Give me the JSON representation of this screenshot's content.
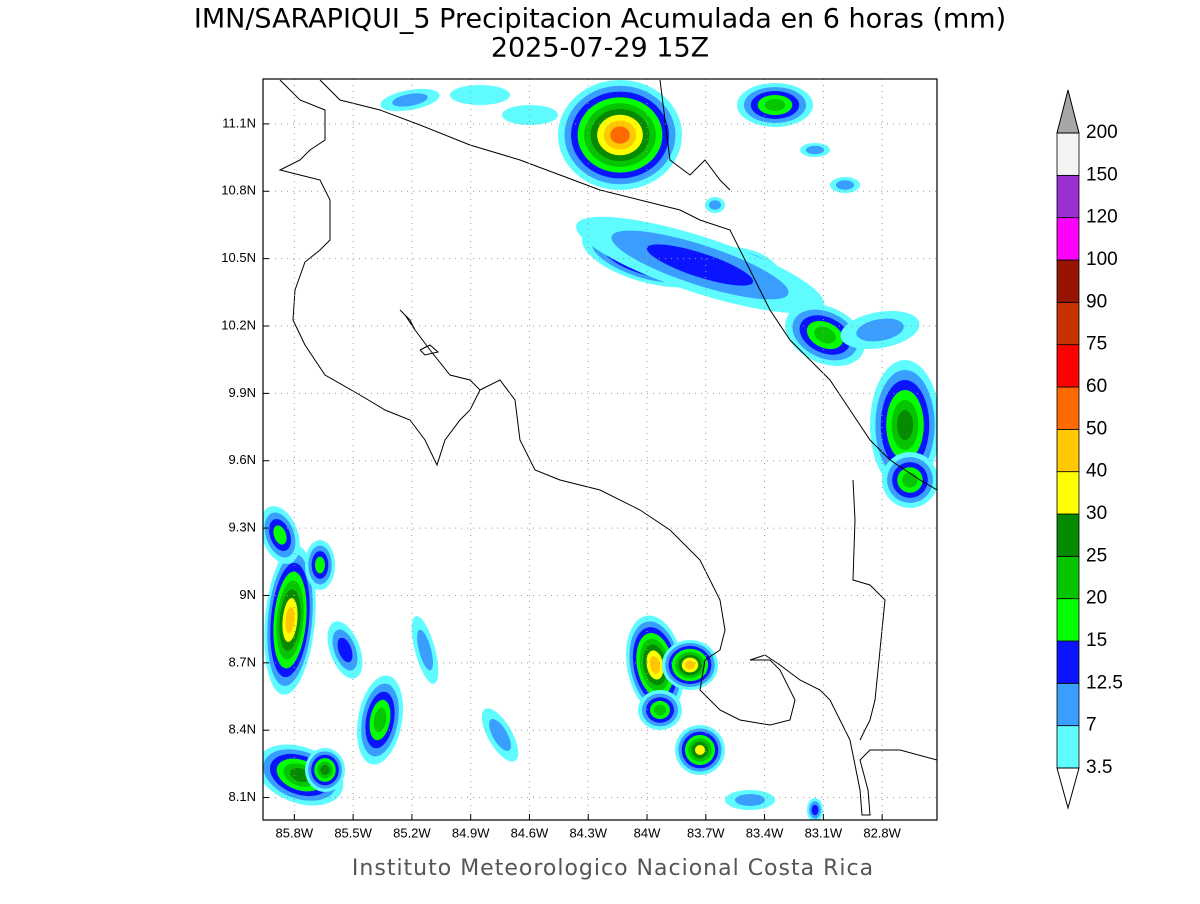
{
  "title": "IMN/SARAPIQUI_5 Precipitacion Acumulada en 6 horas (mm)",
  "subtitle": "2025-07-29 15Z",
  "footer": "Instituto Meteorologico Nacional Costa Rica",
  "map": {
    "xlim": [
      -85.96,
      -82.52
    ],
    "ylim": [
      8.0,
      11.3
    ],
    "grid": true,
    "xticks": [
      {
        "value": -85.8,
        "label": "85.8W"
      },
      {
        "value": -85.5,
        "label": "85.5W"
      },
      {
        "value": -85.2,
        "label": "85.2W"
      },
      {
        "value": -84.9,
        "label": "84.9W"
      },
      {
        "value": -84.6,
        "label": "84.6W"
      },
      {
        "value": -84.3,
        "label": "84.3W"
      },
      {
        "value": -84.0,
        "label": "84W"
      },
      {
        "value": -83.7,
        "label": "83.7W"
      },
      {
        "value": -83.4,
        "label": "83.4W"
      },
      {
        "value": -83.1,
        "label": "83.1W"
      },
      {
        "value": -82.8,
        "label": "82.8W"
      }
    ],
    "yticks": [
      {
        "value": 11.1,
        "label": "11.1N"
      },
      {
        "value": 10.8,
        "label": "10.8N"
      },
      {
        "value": 10.5,
        "label": "10.5N"
      },
      {
        "value": 10.2,
        "label": "10.2N"
      },
      {
        "value": 9.9,
        "label": "9.9N"
      },
      {
        "value": 9.6,
        "label": "9.6N"
      },
      {
        "value": 9.3,
        "label": "9.3N"
      },
      {
        "value": 9.0,
        "label": "9N"
      },
      {
        "value": 8.7,
        "label": "8.7N"
      },
      {
        "value": 8.4,
        "label": "8.4N"
      },
      {
        "value": 8.1,
        "label": "8.1N"
      }
    ]
  },
  "colorbar": {
    "levels": [
      3.5,
      7,
      12.5,
      15,
      20,
      25,
      30,
      40,
      50,
      60,
      75,
      90,
      100,
      120,
      150,
      200
    ],
    "colors": [
      "#5ffcff",
      "#3a9eff",
      "#0a14ff",
      "#06ff00",
      "#05c400",
      "#058a00",
      "#ffff00",
      "#ffc800",
      "#ff6a00",
      "#ff0000",
      "#c83200",
      "#961400",
      "#ff00ff",
      "#9b30d0",
      "#f4f4f4"
    ],
    "below_color": "#ffffff",
    "above_color": "#a6a6a6"
  }
}
